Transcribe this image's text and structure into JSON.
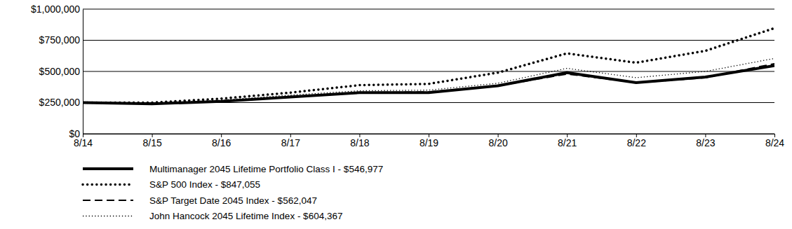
{
  "chart_data": {
    "type": "line",
    "categories": [
      "8/14",
      "8/15",
      "8/16",
      "8/17",
      "8/18",
      "8/19",
      "8/20",
      "8/21",
      "8/22",
      "8/23",
      "8/24"
    ],
    "series": [
      {
        "name": "Multimanager 2045 Lifetime Portfolio Class I - $546,977",
        "color": "#000000",
        "line_style": "solid",
        "values": [
          250000,
          240000,
          260000,
          295000,
          330000,
          330000,
          385000,
          490000,
          410000,
          455000,
          546977
        ]
      },
      {
        "name": "S&P 500 Index - $847,055",
        "color": "#000000",
        "line_style": "dotted",
        "values": [
          250000,
          250000,
          282000,
          330000,
          390000,
          400000,
          490000,
          645000,
          570000,
          665000,
          847055
        ]
      },
      {
        "name": "S&P Target Date 2045 Index - $562,047",
        "color": "#000000",
        "line_style": "dashed",
        "values": [
          250000,
          240000,
          262000,
          298000,
          330000,
          335000,
          385000,
          480000,
          410000,
          450000,
          562047
        ]
      },
      {
        "name": "John Hancock 2045 Lifetime Index - $604,367",
        "color": "#000000",
        "line_style": "dotted",
        "values": [
          250000,
          245000,
          270000,
          310000,
          345000,
          350000,
          405000,
          525000,
          450000,
          500000,
          604367
        ]
      }
    ],
    "ylim": [
      0,
      1000000
    ],
    "yticks": [
      {
        "value": 0,
        "label": "$0"
      },
      {
        "value": 250000,
        "label": "$250,000"
      },
      {
        "value": 500000,
        "label": "$500,000"
      },
      {
        "value": 750000,
        "label": "$750,000"
      },
      {
        "value": 1000000,
        "label": "$1,000,000"
      }
    ],
    "grid": true,
    "legend": "bottom"
  }
}
